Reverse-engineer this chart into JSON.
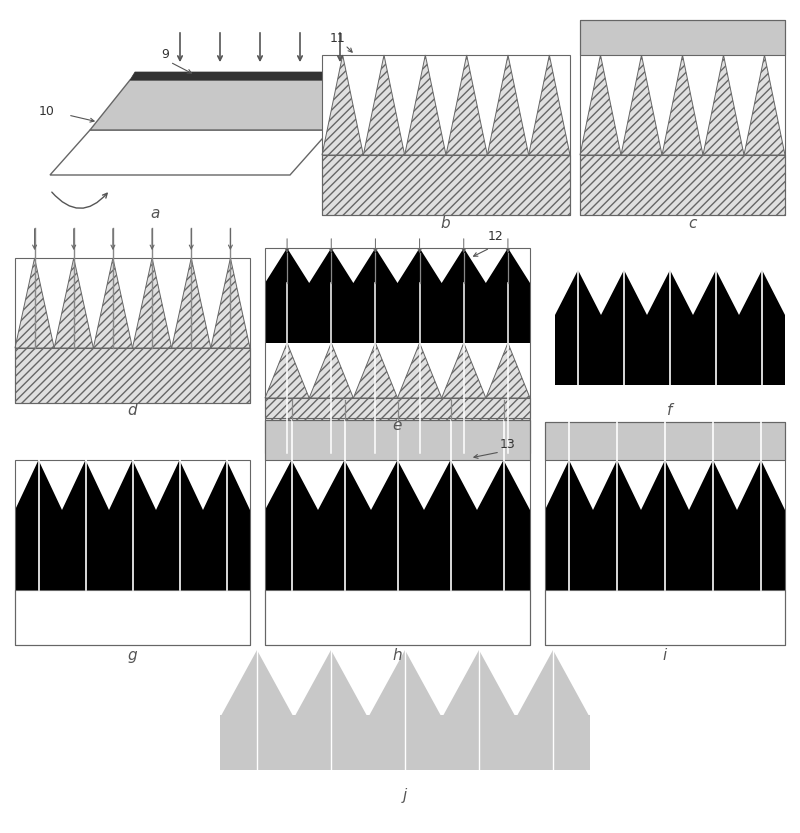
{
  "bg_color": "#ffffff",
  "black": "#000000",
  "white": "#ffffff",
  "gray_light": "#c8c8c8",
  "gray_medium": "#b0b0b0",
  "gray_hatch": "#e0e0e0",
  "box_color": "#666666",
  "label_color": "#555555",
  "figure_width": 8.0,
  "figure_height": 8.33,
  "panel_labels": [
    "a",
    "b",
    "c",
    "d",
    "e",
    "f",
    "g",
    "h",
    "i",
    "j"
  ]
}
